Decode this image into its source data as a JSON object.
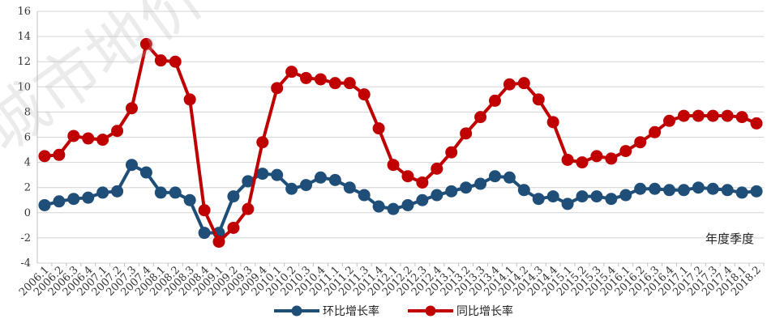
{
  "chart_data": {
    "type": "line",
    "xlabel": "年度季度",
    "ylim": [
      -4,
      16
    ],
    "yticks": [
      -4,
      -2,
      0,
      2,
      4,
      6,
      8,
      10,
      12,
      14,
      16
    ],
    "categories": [
      "2006.1",
      "2006.2",
      "2006.3",
      "2006.4",
      "2007.1",
      "2007.2",
      "2007.3",
      "2007.4",
      "2008.1",
      "2008.2",
      "2008.3",
      "2008.4",
      "2009.1",
      "2009.2",
      "2009.3",
      "2009.4",
      "2010.1",
      "2010.2",
      "2010.3",
      "2010.4",
      "2011.1",
      "2011.2",
      "2011.3",
      "2011.4",
      "2012.1",
      "2012.2",
      "2012.3",
      "2012.4",
      "2013.1",
      "2013.2",
      "2013.3",
      "2013.4",
      "2014.1",
      "2014.2",
      "2014.3",
      "2014.4",
      "2015.1",
      "2015.2",
      "2015.3",
      "2015.4",
      "2016.1",
      "2016.2",
      "2016.3",
      "2016.4",
      "2017.1",
      "2017.2",
      "2017.3",
      "2017.4",
      "2018.1",
      "2018.2"
    ],
    "series": [
      {
        "name": "环比增长率",
        "color": "#1F4E79",
        "values": [
          0.6,
          0.9,
          1.1,
          1.2,
          1.6,
          1.7,
          3.8,
          3.2,
          1.6,
          1.6,
          1.0,
          -1.6,
          -1.6,
          1.3,
          2.5,
          3.1,
          3.0,
          1.9,
          2.2,
          2.8,
          2.6,
          2.0,
          1.4,
          0.5,
          0.3,
          0.6,
          1.0,
          1.4,
          1.7,
          2.0,
          2.3,
          2.9,
          2.8,
          1.8,
          1.1,
          1.3,
          0.7,
          1.3,
          1.3,
          1.1,
          1.4,
          1.9,
          1.9,
          1.8,
          1.8,
          2.0,
          1.9,
          1.8,
          1.6,
          1.7
        ]
      },
      {
        "name": "同比增长率",
        "color": "#C00000",
        "values": [
          4.5,
          4.6,
          6.1,
          5.9,
          5.8,
          6.5,
          8.3,
          13.4,
          12.1,
          12.0,
          9.0,
          0.2,
          -2.3,
          -1.2,
          0.3,
          5.6,
          9.9,
          11.2,
          10.7,
          10.6,
          10.3,
          10.3,
          9.4,
          6.7,
          3.8,
          2.9,
          2.4,
          3.5,
          4.8,
          6.3,
          7.6,
          8.9,
          10.2,
          10.3,
          9.0,
          7.2,
          4.2,
          4.0,
          4.5,
          4.3,
          4.9,
          5.6,
          6.4,
          7.3,
          7.7,
          7.7,
          7.7,
          7.7,
          7.6,
          7.1
        ]
      }
    ],
    "grid": true,
    "legend": "bottom-center",
    "watermark": "城市地价动态监测"
  }
}
